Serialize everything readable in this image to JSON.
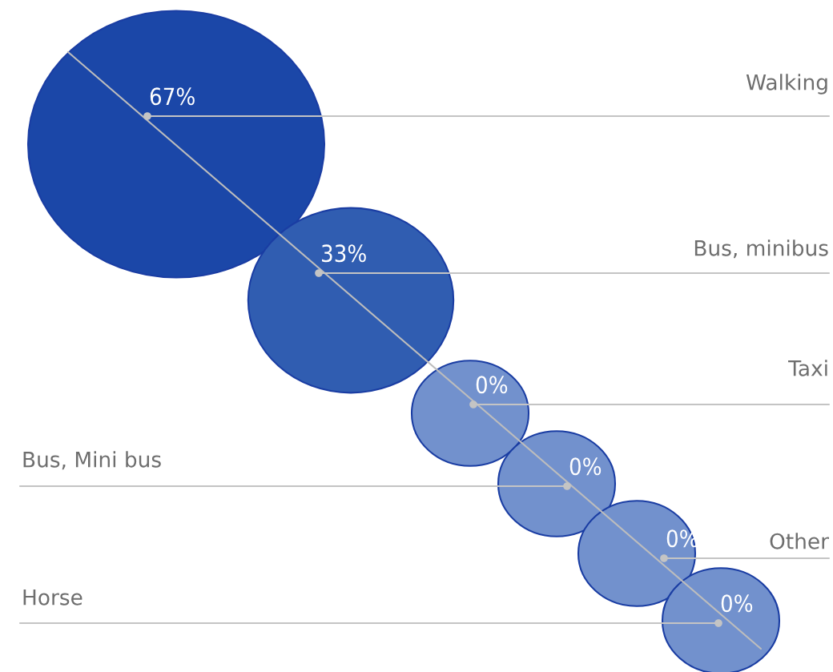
{
  "chart_data": {
    "type": "other",
    "categories": [
      "Walking",
      "Bus, minibus",
      "Taxi",
      "Bus, Mini bus",
      "Other",
      "Horse"
    ],
    "values": [
      67,
      33,
      0,
      0,
      0,
      0
    ],
    "value_labels": [
      "67%",
      "33%",
      "0%",
      "0%",
      "0%",
      "0%"
    ],
    "colors": [
      "#1b47a8",
      "#305db1",
      "#7291cd",
      "#7291cd",
      "#7291cd",
      "#7291cd"
    ]
  }
}
